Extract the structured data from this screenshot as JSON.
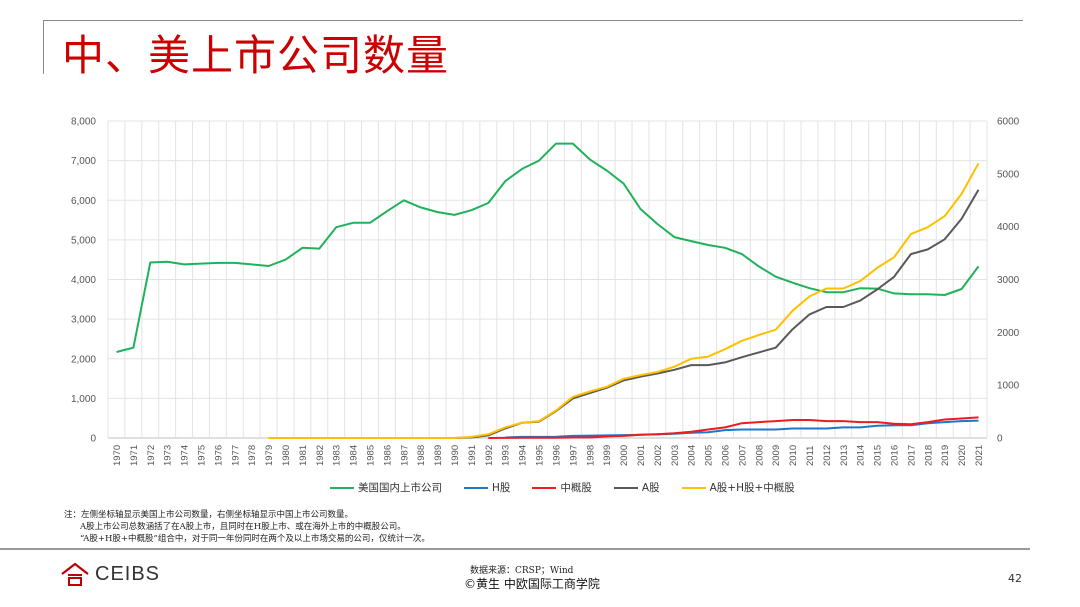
{
  "title": "中、美上市公司数量",
  "chart_data": {
    "type": "line",
    "title": "",
    "x": [
      1970,
      1971,
      1972,
      1973,
      1974,
      1975,
      1976,
      1977,
      1978,
      1979,
      1980,
      1981,
      1982,
      1983,
      1984,
      1985,
      1986,
      1987,
      1988,
      1989,
      1990,
      1991,
      1992,
      1993,
      1994,
      1995,
      1996,
      1997,
      1998,
      1999,
      2000,
      2001,
      2002,
      2003,
      2004,
      2005,
      2006,
      2007,
      2008,
      2009,
      2010,
      2011,
      2012,
      2013,
      2014,
      2015,
      2016,
      2017,
      2018,
      2019,
      2020,
      2021
    ],
    "y_left": {
      "ylim": [
        0,
        8000
      ],
      "ticks": [
        "0",
        "1,000",
        "2,000",
        "3,000",
        "4,000",
        "5,000",
        "6,000",
        "7,000",
        "8,000"
      ]
    },
    "y_right": {
      "ylim": [
        0,
        6000
      ],
      "ticks": [
        "0",
        "1000",
        "2000",
        "3000",
        "4000",
        "5000",
        "6000"
      ]
    },
    "grid": true,
    "legend_position": "bottom",
    "series": [
      {
        "name": "美国国内上市公司",
        "axis": "left",
        "color": "#1fb25a",
        "values": [
          2170,
          2280,
          4430,
          4450,
          4380,
          4400,
          4420,
          4420,
          4380,
          4340,
          4500,
          4800,
          4780,
          5320,
          5430,
          5430,
          5720,
          6000,
          5820,
          5700,
          5630,
          5750,
          5930,
          6480,
          6790,
          7000,
          7430,
          7430,
          7030,
          6750,
          6420,
          5780,
          5400,
          5070,
          4970,
          4870,
          4800,
          4640,
          4330,
          4070,
          3920,
          3780,
          3680,
          3680,
          3780,
          3770,
          3650,
          3630,
          3630,
          3610,
          3760,
          4330
        ]
      },
      {
        "name": "H股",
        "axis": "right",
        "color": "#1f77c8",
        "values": [
          null,
          null,
          null,
          null,
          null,
          null,
          null,
          null,
          null,
          null,
          null,
          null,
          null,
          null,
          null,
          null,
          null,
          null,
          null,
          null,
          null,
          null,
          null,
          10,
          20,
          20,
          25,
          40,
          45,
          50,
          55,
          60,
          70,
          80,
          100,
          110,
          150,
          160,
          160,
          160,
          180,
          180,
          180,
          200,
          200,
          230,
          240,
          240,
          280,
          300,
          320,
          330
        ]
      },
      {
        "name": "中概股",
        "axis": "right",
        "color": "#ee1c1c",
        "values": [
          null,
          null,
          null,
          null,
          null,
          null,
          null,
          null,
          null,
          null,
          null,
          null,
          null,
          null,
          null,
          null,
          null,
          null,
          null,
          null,
          null,
          null,
          0,
          2,
          5,
          5,
          5,
          10,
          10,
          30,
          40,
          60,
          70,
          90,
          120,
          160,
          200,
          280,
          300,
          320,
          340,
          340,
          320,
          320,
          300,
          300,
          270,
          260,
          300,
          350,
          370,
          390
        ]
      },
      {
        "name": "A股",
        "axis": "right",
        "color": "#595959",
        "values": [
          null,
          null,
          null,
          null,
          null,
          null,
          null,
          null,
          null,
          null,
          null,
          null,
          null,
          null,
          null,
          null,
          null,
          null,
          null,
          null,
          0,
          10,
          50,
          180,
          290,
          310,
          510,
          750,
          850,
          950,
          1090,
          1160,
          1220,
          1290,
          1380,
          1380,
          1430,
          1530,
          1620,
          1710,
          2060,
          2340,
          2480,
          2480,
          2600,
          2810,
          3050,
          3480,
          3570,
          3760,
          4150,
          4700
        ]
      },
      {
        "name": "A股+H股+中概股",
        "axis": "right",
        "color": "#ffc000",
        "values": [
          null,
          null,
          null,
          null,
          null,
          null,
          null,
          null,
          null,
          0,
          0,
          0,
          0,
          0,
          0,
          0,
          0,
          0,
          0,
          0,
          0,
          20,
          70,
          200,
          290,
          320,
          520,
          780,
          880,
          970,
          1120,
          1190,
          1250,
          1350,
          1500,
          1540,
          1680,
          1840,
          1950,
          2050,
          2410,
          2680,
          2830,
          2830,
          2970,
          3220,
          3420,
          3860,
          3990,
          4200,
          4620,
          5200
        ]
      }
    ]
  },
  "notes": [
    "注：左侧坐标轴显示美国上市公司数量，右侧坐标轴显示中国上市公司数量。",
    "A股上市公司总数涵括了在A股上市，且同时在H股上市、或在海外上市的中概股公司。",
    "“A股+H股+中概股”组合中，对于同一年份同时在两个及以上市场交易的公司，仅统计一次。"
  ],
  "footer": {
    "logo_text": "CEIBS",
    "source": "数据来源：CRSP；Wind",
    "copyright": "©黄生 中欧国际工商学院",
    "page_number": "42"
  }
}
